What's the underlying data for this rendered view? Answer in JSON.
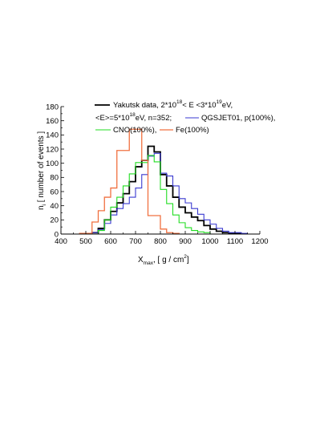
{
  "chart_data": {
    "type": "histogram-step",
    "xlim": [
      400,
      1200
    ],
    "ylim": [
      0,
      180
    ],
    "x_ticks": [
      400,
      500,
      600,
      700,
      800,
      900,
      1000,
      1100,
      1200
    ],
    "y_ticks": [
      0,
      20,
      40,
      60,
      80,
      100,
      120,
      140,
      160,
      180
    ],
    "xlabel": {
      "base": "X",
      "sub": "max",
      "rest": ",  [ g / cm",
      "sup": "2",
      "end": "]"
    },
    "ylabel": {
      "base": "n",
      "sub": "i",
      "rest": "  [ number of events ]"
    },
    "legend": {
      "line1": {
        "a": "Yakutsk data, 2*10",
        "b": "18",
        "c": "< E <3*10",
        "d": "19",
        "e": "eV,"
      },
      "line2": {
        "a": "<E>=5*10",
        "b": "18",
        "c": "eV, n=352;"
      },
      "series_labels": {
        "yakutsk": "",
        "qgsjet": "QGSJET01, p(100%),",
        "cno": "CNO(100%),",
        "fe": "Fe(100%)"
      }
    },
    "series": [
      {
        "key": "yakutsk",
        "color": "#000000",
        "width": 1.8,
        "edges": [
          525,
          550,
          575,
          600,
          625,
          650,
          675,
          700,
          725,
          750,
          775,
          800,
          825,
          850,
          875,
          900,
          925,
          950,
          975,
          1000,
          1025,
          1050,
          1075,
          1100,
          1125
        ],
        "values": [
          2,
          8,
          20,
          32,
          44,
          57,
          74,
          95,
          104,
          124,
          116,
          84,
          68,
          52,
          38,
          30,
          24,
          19,
          12,
          7,
          4,
          2,
          1,
          1
        ]
      },
      {
        "key": "qgsjet",
        "color": "#3a3ad0",
        "width": 1.1,
        "edges": [
          525,
          550,
          575,
          600,
          625,
          650,
          675,
          700,
          725,
          750,
          775,
          800,
          825,
          850,
          875,
          900,
          925,
          950,
          975,
          1000,
          1025,
          1050,
          1075,
          1100,
          1125,
          1150
        ],
        "values": [
          2,
          6,
          15,
          27,
          36,
          43,
          52,
          65,
          84,
          110,
          114,
          86,
          82,
          68,
          50,
          44,
          36,
          28,
          20,
          14,
          8,
          4,
          2,
          2,
          1
        ]
      },
      {
        "key": "cno",
        "color": "#22dd22",
        "width": 1.1,
        "edges": [
          550,
          575,
          600,
          625,
          650,
          675,
          700,
          725,
          750,
          775,
          800,
          825,
          850,
          875,
          900,
          925,
          950,
          975,
          1000
        ],
        "values": [
          5,
          20,
          38,
          52,
          68,
          85,
          101,
          101,
          111,
          102,
          63,
          43,
          27,
          16,
          9,
          5,
          3,
          2
        ]
      },
      {
        "key": "fe",
        "color": "#f07040",
        "width": 1.3,
        "edges": [
          475,
          525,
          550,
          575,
          600,
          625,
          650,
          675,
          700,
          725,
          750,
          775,
          800,
          825,
          850,
          875
        ],
        "values": [
          1,
          17,
          33,
          52,
          65,
          118,
          118,
          148,
          148,
          104,
          26,
          26,
          7,
          2,
          1
        ]
      }
    ]
  }
}
